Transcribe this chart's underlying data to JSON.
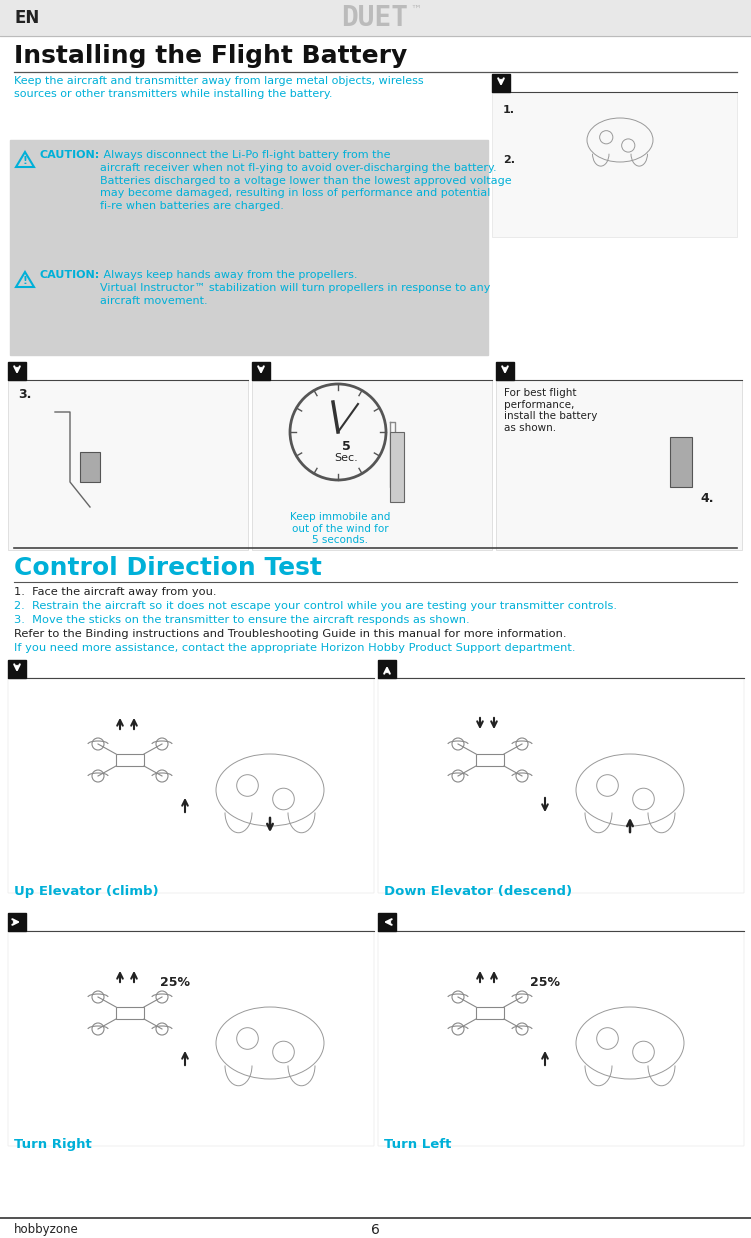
{
  "bg_color": "#ffffff",
  "header_bg": "#e8e8e8",
  "header_en_text": "EN",
  "header_en_color": "#222222",
  "header_en_fontsize": 12,
  "header_logo_text": "DUET",
  "header_logo_sup": "™",
  "header_logo_color": "#bbbbbb",
  "header_logo_fontsize": 20,
  "title_text": "Installing the Flight Battery",
  "title_fontsize": 18,
  "title_color": "#111111",
  "title_weight": "bold",
  "cyan_color": "#00b0d8",
  "dark_color": "#222222",
  "gray_box_color": "#d0d0d0",
  "intro_text": "Keep the aircraft and transmitter away from large metal objects, wireless\nsources or other transmitters while installing the battery.",
  "caution1_bold": "CAUTION:",
  "caution1_text": " Always disconnect the Li-Po fl­ight battery from the\naircraft receiver when not fl­ying to avoid over-discharging the battery.\nBatteries discharged to a voltage lower than the lowest approved voltage\nmay become damaged, resulting in loss of performance and potential\nfi­re when batteries are charged.",
  "caution2_bold": "CAUTION:",
  "caution2_text": " Always keep hands away from the propellers.\nVirtual Instructor™ stabilization will turn propellers in response to any\naircraft movement.",
  "section2_title": "Control Direction Test",
  "section2_title_color": "#00b0d8",
  "section2_title_fontsize": 18,
  "section2_title_weight": "bold",
  "step1": "1.  Face the aircraft away from you.",
  "step2": "2.  Restrain the aircraft so it does not escape your control while you are testing your transmitter controls.",
  "step3": "3.  Move the sticks on the transmitter to ensure the aircraft responds as shown.",
  "refer_text": "Refer to the Binding instructions and Troubleshooting Guide in this manual for more information.",
  "contact_text": "If you need more assistance, contact the appropriate Horizon Hobby Product Support department.",
  "label_up": "Up Elevator (climb)",
  "label_down": "Down Elevator (descend)",
  "label_right": "Turn Right",
  "label_left": "Turn Left",
  "label_25pct": "25%",
  "label_5sec": "5\nSec.",
  "keep_text": "Keep immobile and\nout of the wind for\n5 seconds.",
  "best_flight_text": "For best flight\nperformance,\ninstall the battery\nas shown.",
  "footer_page": "6",
  "footer_logo": "hobbyzone",
  "divider_color": "#333333",
  "arrow_box_bg": "#111111"
}
